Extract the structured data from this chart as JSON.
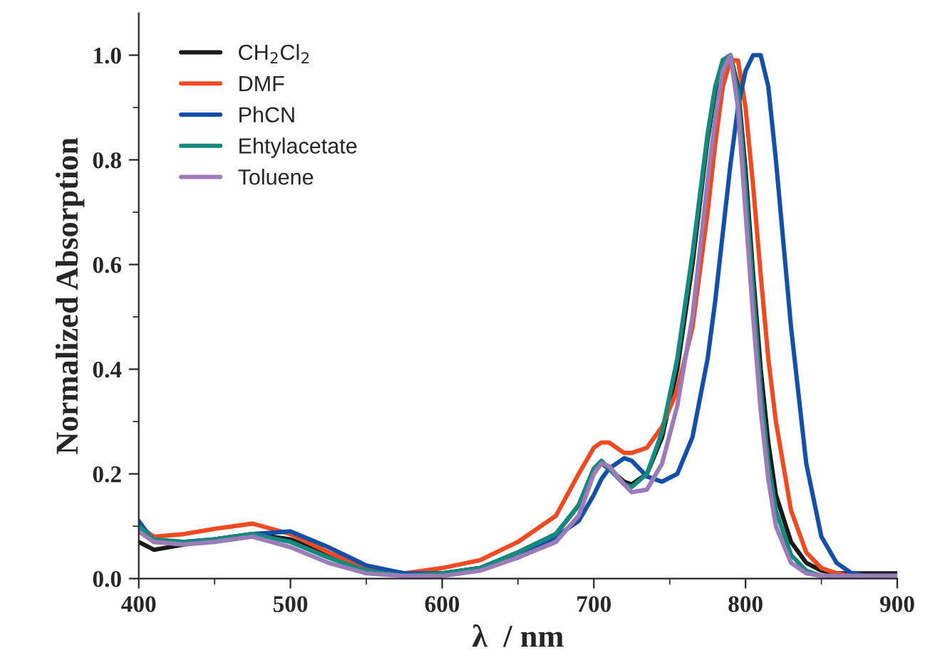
{
  "chart_data": {
    "type": "line",
    "xlabel": "λ  / nm",
    "ylabel": "Normalized Absorption",
    "x": [
      400,
      410,
      430,
      450,
      475,
      500,
      525,
      550,
      575,
      600,
      625,
      650,
      675,
      690,
      700,
      705,
      710,
      720,
      725,
      735,
      745,
      755,
      765,
      775,
      780,
      785,
      790,
      795,
      800,
      805,
      810,
      815,
      820,
      830,
      840,
      850,
      860,
      870,
      880,
      900
    ],
    "series": [
      {
        "name": "CH$_{2}$Cl$_{2}$",
        "color": "#1a1a1a",
        "values": [
          0.07,
          0.055,
          0.065,
          0.075,
          0.085,
          0.075,
          0.045,
          0.02,
          0.01,
          0.01,
          0.02,
          0.05,
          0.085,
          0.14,
          0.21,
          0.22,
          0.21,
          0.185,
          0.18,
          0.2,
          0.27,
          0.4,
          0.6,
          0.84,
          0.93,
          0.99,
          1.0,
          0.94,
          0.78,
          0.58,
          0.4,
          0.26,
          0.16,
          0.07,
          0.03,
          0.015,
          0.01,
          0.01,
          0.01,
          0.01
        ]
      },
      {
        "name": "DMF",
        "color": "#f04a23",
        "values": [
          0.1,
          0.08,
          0.085,
          0.095,
          0.105,
          0.085,
          0.05,
          0.02,
          0.01,
          0.02,
          0.035,
          0.07,
          0.12,
          0.2,
          0.25,
          0.26,
          0.26,
          0.24,
          0.24,
          0.25,
          0.29,
          0.36,
          0.48,
          0.7,
          0.83,
          0.94,
          0.99,
          0.99,
          0.9,
          0.75,
          0.58,
          0.42,
          0.3,
          0.13,
          0.05,
          0.02,
          0.01,
          0.005,
          0.005,
          0.005
        ]
      },
      {
        "name": "PhCN",
        "color": "#1450a8",
        "values": [
          0.11,
          0.07,
          0.07,
          0.075,
          0.085,
          0.09,
          0.06,
          0.025,
          0.01,
          0.01,
          0.02,
          0.04,
          0.08,
          0.11,
          0.16,
          0.19,
          0.21,
          0.23,
          0.225,
          0.195,
          0.185,
          0.2,
          0.27,
          0.42,
          0.53,
          0.66,
          0.79,
          0.9,
          0.97,
          1.0,
          1.0,
          0.94,
          0.8,
          0.48,
          0.22,
          0.08,
          0.03,
          0.01,
          0.005,
          0.005
        ]
      },
      {
        "name": "Ehtylacetate",
        "color": "#138a7e",
        "values": [
          0.1,
          0.075,
          0.07,
          0.075,
          0.085,
          0.07,
          0.04,
          0.015,
          0.005,
          0.01,
          0.02,
          0.05,
          0.085,
          0.14,
          0.21,
          0.225,
          0.21,
          0.18,
          0.175,
          0.2,
          0.28,
          0.42,
          0.62,
          0.85,
          0.94,
          0.99,
          1.0,
          0.93,
          0.75,
          0.55,
          0.36,
          0.22,
          0.13,
          0.045,
          0.015,
          0.005,
          0.005,
          0.005,
          0.005,
          0.005
        ]
      },
      {
        "name": "Toluene",
        "color": "#9b7bb8",
        "values": [
          0.09,
          0.07,
          0.065,
          0.07,
          0.08,
          0.06,
          0.03,
          0.01,
          0.005,
          0.005,
          0.015,
          0.04,
          0.07,
          0.12,
          0.2,
          0.22,
          0.215,
          0.18,
          0.165,
          0.17,
          0.22,
          0.33,
          0.5,
          0.76,
          0.88,
          0.97,
          1.0,
          0.9,
          0.7,
          0.5,
          0.32,
          0.19,
          0.1,
          0.03,
          0.01,
          0.005,
          0.005,
          0.005,
          0.005,
          0.005
        ]
      }
    ],
    "xlim": [
      400,
      900
    ],
    "ylim": [
      0,
      1.08
    ],
    "xticks": [
      400,
      500,
      600,
      700,
      800,
      900
    ],
    "yticks": [
      {
        "value": 0,
        "label": "0.0"
      },
      {
        "value": 0.2,
        "label": "0.2"
      },
      {
        "value": 0.4,
        "label": "0.4"
      },
      {
        "value": 0.6,
        "label": "0.6"
      },
      {
        "value": 0.8,
        "label": "0.8"
      },
      {
        "value": 1.0,
        "label": "1.0"
      }
    ],
    "legend": "top left",
    "grid": false,
    "marker": "none",
    "line_style": "solid"
  }
}
